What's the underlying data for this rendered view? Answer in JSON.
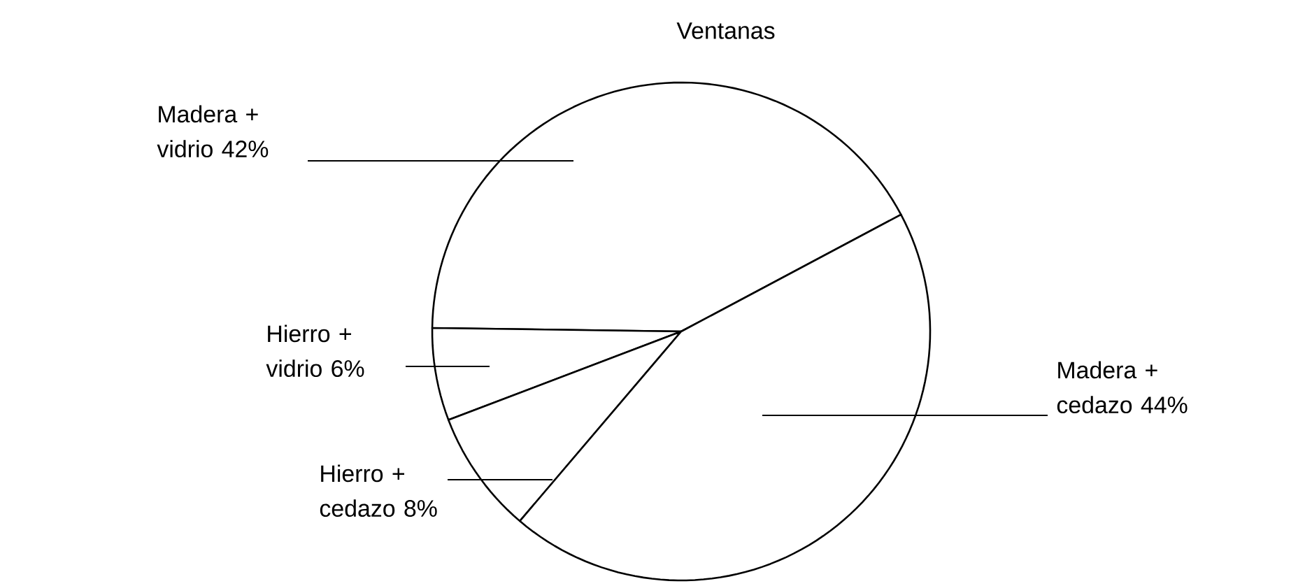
{
  "chart_data": {
    "type": "pie",
    "title": "Ventanas",
    "categories": [
      "Madera + vidrio",
      "Hierro + vidrio",
      "Hierro + cedazo",
      "Madera + cedazo"
    ],
    "values": [
      42,
      6,
      8,
      44
    ],
    "value_labels": [
      "42%",
      "6%",
      "8%",
      "44%"
    ],
    "colors": [
      "#ffffff",
      "#ffffff",
      "#ffffff",
      "#ffffff"
    ]
  }
}
